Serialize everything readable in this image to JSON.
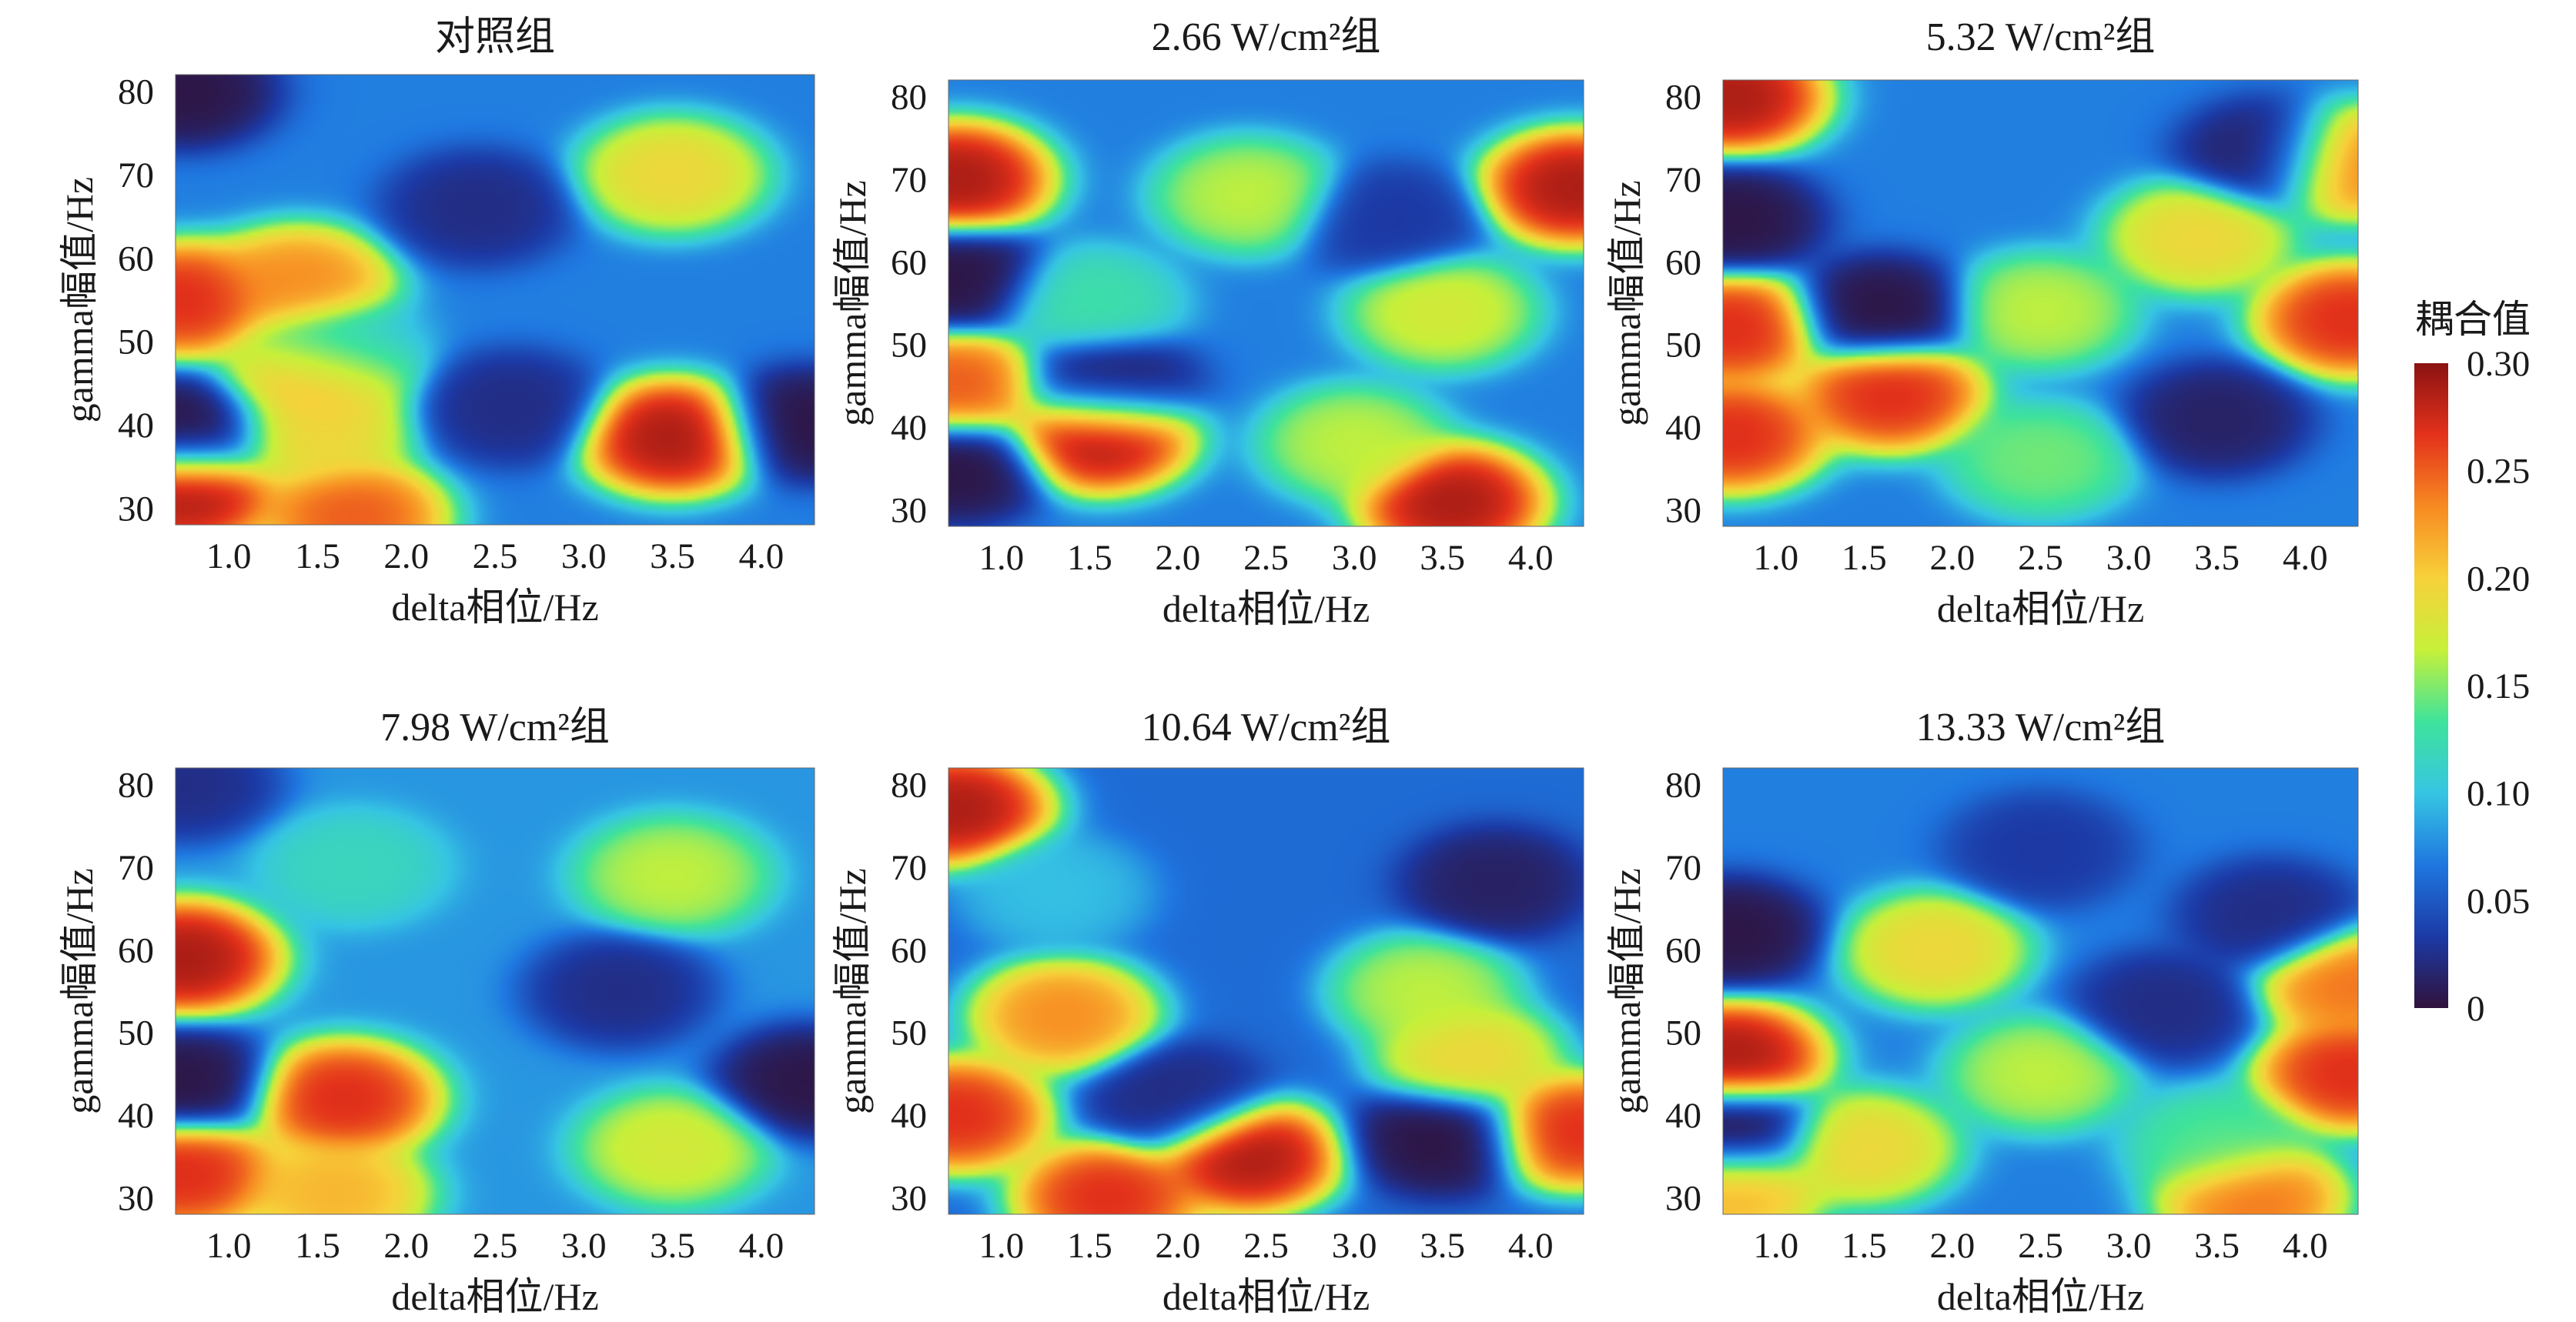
{
  "figure": {
    "colorbar": {
      "title": "耦合值",
      "range": [
        0,
        0.3
      ],
      "ticks": [
        "0.30",
        "0.25",
        "0.20",
        "0.15",
        "0.10",
        "0.05",
        "0"
      ],
      "colormap": [
        "#30123b",
        "#1c3aa6",
        "#1f77e0",
        "#36c5e3",
        "#3fe39b",
        "#c7f03a",
        "#f7d13a",
        "#f78a22",
        "#e3321b",
        "#8b1212"
      ]
    }
  },
  "chart_data": [
    {
      "type": "heatmap",
      "title": "对照组",
      "xlabel": "delta相位/Hz",
      "ylabel": "gamma幅值/Hz",
      "xlim": [
        0.7,
        4.3
      ],
      "ylim": [
        28,
        82
      ],
      "xticks": [
        "1.0",
        "1.5",
        "2.0",
        "2.5",
        "3.0",
        "3.5",
        "4.0"
      ],
      "yticks": [
        "30",
        "40",
        "50",
        "60",
        "70",
        "80"
      ],
      "base": 0.07,
      "blobs": [
        {
          "x": 0.75,
          "y": 55,
          "v": 0.28
        },
        {
          "x": 1.4,
          "y": 57,
          "v": 0.24
        },
        {
          "x": 1.6,
          "y": 49,
          "v": 0.1
        },
        {
          "x": 1.5,
          "y": 46,
          "v": 0.23
        },
        {
          "x": 1.5,
          "y": 39,
          "v": 0.2
        },
        {
          "x": 3.5,
          "y": 38.5,
          "v": 0.3
        },
        {
          "x": 3.5,
          "y": 70,
          "v": 0.2
        },
        {
          "x": 0.75,
          "y": 32,
          "v": 0.3
        },
        {
          "x": 1.7,
          "y": 29,
          "v": 0.26
        },
        {
          "x": 0.75,
          "y": 80,
          "v": 0.0
        },
        {
          "x": 0.75,
          "y": 39,
          "v": 0.0
        },
        {
          "x": 4.25,
          "y": 40,
          "v": 0.0
        },
        {
          "x": 2.6,
          "y": 42,
          "v": 0.02
        },
        {
          "x": 2.4,
          "y": 66,
          "v": 0.02
        }
      ]
    },
    {
      "type": "heatmap",
      "title": "2.66 W/cm²组",
      "xlabel": "delta相位/Hz",
      "ylabel": "gamma幅值/Hz",
      "xlim": [
        0.7,
        4.3
      ],
      "ylim": [
        28,
        82
      ],
      "xticks": [
        "1.0",
        "1.5",
        "2.0",
        "2.5",
        "3.0",
        "3.5",
        "4.0"
      ],
      "yticks": [
        "30",
        "40",
        "50",
        "60",
        "70",
        "80"
      ],
      "base": 0.07,
      "blobs": [
        {
          "x": 0.75,
          "y": 70,
          "v": 0.3
        },
        {
          "x": 4.25,
          "y": 69,
          "v": 0.3
        },
        {
          "x": 1.55,
          "y": 39,
          "v": 0.3
        },
        {
          "x": 3.55,
          "y": 31,
          "v": 0.3
        },
        {
          "x": 0.75,
          "y": 45,
          "v": 0.26
        },
        {
          "x": 2.4,
          "y": 68,
          "v": 0.17
        },
        {
          "x": 3.5,
          "y": 54,
          "v": 0.18
        },
        {
          "x": 1.5,
          "y": 55,
          "v": 0.13
        },
        {
          "x": 3.0,
          "y": 38,
          "v": 0.17
        },
        {
          "x": 0.75,
          "y": 58,
          "v": 0.0
        },
        {
          "x": 0.75,
          "y": 35,
          "v": 0.0
        },
        {
          "x": 1.6,
          "y": 45,
          "v": 0.01
        },
        {
          "x": 3.2,
          "y": 65,
          "v": 0.03
        }
      ]
    },
    {
      "type": "heatmap",
      "title": "5.32 W/cm²组",
      "xlabel": "delta相位/Hz",
      "ylabel": "gamma幅值/Hz",
      "xlim": [
        0.7,
        4.3
      ],
      "ylim": [
        28,
        82
      ],
      "xticks": [
        "1.0",
        "1.5",
        "2.0",
        "2.5",
        "3.0",
        "3.5",
        "4.0"
      ],
      "yticks": [
        "30",
        "40",
        "50",
        "60",
        "70",
        "80"
      ],
      "base": 0.07,
      "blobs": [
        {
          "x": 0.75,
          "y": 80,
          "v": 0.3
        },
        {
          "x": 0.75,
          "y": 52,
          "v": 0.28
        },
        {
          "x": 0.75,
          "y": 39,
          "v": 0.28
        },
        {
          "x": 1.65,
          "y": 44,
          "v": 0.28
        },
        {
          "x": 4.25,
          "y": 53,
          "v": 0.28
        },
        {
          "x": 4.25,
          "y": 72,
          "v": 0.25
        },
        {
          "x": 3.4,
          "y": 63,
          "v": 0.2
        },
        {
          "x": 2.5,
          "y": 54,
          "v": 0.17
        },
        {
          "x": 2.5,
          "y": 36,
          "v": 0.15
        },
        {
          "x": 1.6,
          "y": 54,
          "v": 0.0
        },
        {
          "x": 3.5,
          "y": 41,
          "v": 0.01
        },
        {
          "x": 3.8,
          "y": 73,
          "v": 0.01
        },
        {
          "x": 0.75,
          "y": 65,
          "v": 0.0
        }
      ]
    },
    {
      "type": "heatmap",
      "title": "7.98 W/cm²组",
      "xlabel": "delta相位/Hz",
      "ylabel": "gamma幅值/Hz",
      "xlim": [
        0.7,
        4.3
      ],
      "ylim": [
        28,
        82
      ],
      "xticks": [
        "1.0",
        "1.5",
        "2.0",
        "2.5",
        "3.0",
        "3.5",
        "4.0"
      ],
      "yticks": [
        "30",
        "40",
        "50",
        "60",
        "70",
        "80"
      ],
      "base": 0.08,
      "blobs": [
        {
          "x": 0.75,
          "y": 59,
          "v": 0.3
        },
        {
          "x": 1.65,
          "y": 42,
          "v": 0.28
        },
        {
          "x": 0.75,
          "y": 33,
          "v": 0.28
        },
        {
          "x": 1.6,
          "y": 30.5,
          "v": 0.22
        },
        {
          "x": 3.5,
          "y": 36,
          "v": 0.18
        },
        {
          "x": 3.5,
          "y": 69,
          "v": 0.17
        },
        {
          "x": 1.7,
          "y": 70,
          "v": 0.12
        },
        {
          "x": 0.75,
          "y": 44,
          "v": 0.0
        },
        {
          "x": 4.25,
          "y": 44,
          "v": 0.0
        },
        {
          "x": 3.2,
          "y": 55,
          "v": 0.02
        },
        {
          "x": 0.75,
          "y": 80,
          "v": 0.02
        }
      ]
    },
    {
      "type": "heatmap",
      "title": "10.64 W/cm²组",
      "xlabel": "delta相位/Hz",
      "ylabel": "gamma幅值/Hz",
      "xlim": [
        0.7,
        4.3
      ],
      "ylim": [
        28,
        82
      ],
      "xticks": [
        "1.0",
        "1.5",
        "2.0",
        "2.5",
        "3.0",
        "3.5",
        "4.0"
      ],
      "yticks": [
        "30",
        "40",
        "50",
        "60",
        "70",
        "80"
      ],
      "base": 0.06,
      "blobs": [
        {
          "x": 0.75,
          "y": 77,
          "v": 0.3
        },
        {
          "x": 1.35,
          "y": 52,
          "v": 0.24
        },
        {
          "x": 2.4,
          "y": 35,
          "v": 0.3
        },
        {
          "x": 1.6,
          "y": 30,
          "v": 0.28
        },
        {
          "x": 0.75,
          "y": 40,
          "v": 0.28
        },
        {
          "x": 4.25,
          "y": 38,
          "v": 0.28
        },
        {
          "x": 3.65,
          "y": 47,
          "v": 0.2
        },
        {
          "x": 3.4,
          "y": 55,
          "v": 0.17
        },
        {
          "x": 1.3,
          "y": 67,
          "v": 0.1
        },
        {
          "x": 3.5,
          "y": 37,
          "v": 0.0
        },
        {
          "x": 2.0,
          "y": 42,
          "v": 0.02
        },
        {
          "x": 3.8,
          "y": 68,
          "v": 0.01
        }
      ]
    },
    {
      "type": "heatmap",
      "title": "13.33 W/cm²组",
      "xlabel": "delta相位/Hz",
      "ylabel": "gamma幅值/Hz",
      "xlim": [
        0.7,
        4.3
      ],
      "ylim": [
        28,
        82
      ],
      "xticks": [
        "1.0",
        "1.5",
        "2.0",
        "2.5",
        "3.0",
        "3.5",
        "4.0"
      ],
      "yticks": [
        "30",
        "40",
        "50",
        "60",
        "70",
        "80"
      ],
      "base": 0.07,
      "blobs": [
        {
          "x": 0.75,
          "y": 47,
          "v": 0.3
        },
        {
          "x": 4.25,
          "y": 45,
          "v": 0.28
        },
        {
          "x": 1.9,
          "y": 60,
          "v": 0.2
        },
        {
          "x": 2.5,
          "y": 45,
          "v": 0.17
        },
        {
          "x": 1.5,
          "y": 36,
          "v": 0.2
        },
        {
          "x": 3.7,
          "y": 30,
          "v": 0.25
        },
        {
          "x": 3.5,
          "y": 36.5,
          "v": 0.14
        },
        {
          "x": 4.25,
          "y": 56,
          "v": 0.25
        },
        {
          "x": 0.75,
          "y": 31,
          "v": 0.22
        },
        {
          "x": 0.75,
          "y": 62,
          "v": 0.0
        },
        {
          "x": 0.75,
          "y": 38,
          "v": 0.0
        },
        {
          "x": 3.2,
          "y": 53,
          "v": 0.02
        },
        {
          "x": 3.8,
          "y": 64,
          "v": 0.02
        },
        {
          "x": 2.5,
          "y": 72,
          "v": 0.03
        }
      ]
    }
  ]
}
